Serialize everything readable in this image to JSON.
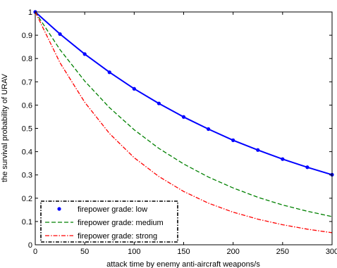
{
  "chart_data": {
    "type": "line",
    "title": "",
    "xlabel": "attack time by enemy anti-aircraft weapons/s",
    "ylabel": "the survival probability of URAV",
    "xlim": [
      0,
      300
    ],
    "ylim": [
      0,
      1
    ],
    "x_ticks": [
      "0",
      "50",
      "100",
      "150",
      "200",
      "250",
      "300"
    ],
    "y_ticks": [
      "0",
      "0.1",
      "0.2",
      "0.3",
      "0.4",
      "0.5",
      "0.6",
      "0.7",
      "0.8",
      "0.9",
      "1"
    ],
    "grid": false,
    "legend_position": "bottom-left",
    "series": [
      {
        "name": "firepower grade: low",
        "color": "#0000ff",
        "style": "dots",
        "x": [
          0,
          25,
          50,
          75,
          100,
          125,
          150,
          175,
          200,
          225,
          250,
          275,
          300
        ],
        "y": [
          1.0,
          0.905,
          0.819,
          0.741,
          0.67,
          0.607,
          0.549,
          0.497,
          0.449,
          0.407,
          0.368,
          0.333,
          0.301
        ]
      },
      {
        "name": "firepower grade: medium",
        "color": "#008000",
        "style": "dashed",
        "x": [
          0,
          25,
          50,
          75,
          100,
          125,
          150,
          175,
          200,
          225,
          250,
          275,
          300
        ],
        "y": [
          1.0,
          0.838,
          0.703,
          0.589,
          0.494,
          0.414,
          0.347,
          0.291,
          0.244,
          0.204,
          0.171,
          0.144,
          0.121
        ]
      },
      {
        "name": "firepower grade: strong",
        "color": "#ff0000",
        "style": "dashdot",
        "x": [
          0,
          25,
          50,
          75,
          100,
          125,
          150,
          175,
          200,
          225,
          250,
          275,
          300
        ],
        "y": [
          1.0,
          0.782,
          0.612,
          0.478,
          0.374,
          0.293,
          0.229,
          0.179,
          0.14,
          0.11,
          0.086,
          0.067,
          0.052
        ]
      }
    ]
  }
}
